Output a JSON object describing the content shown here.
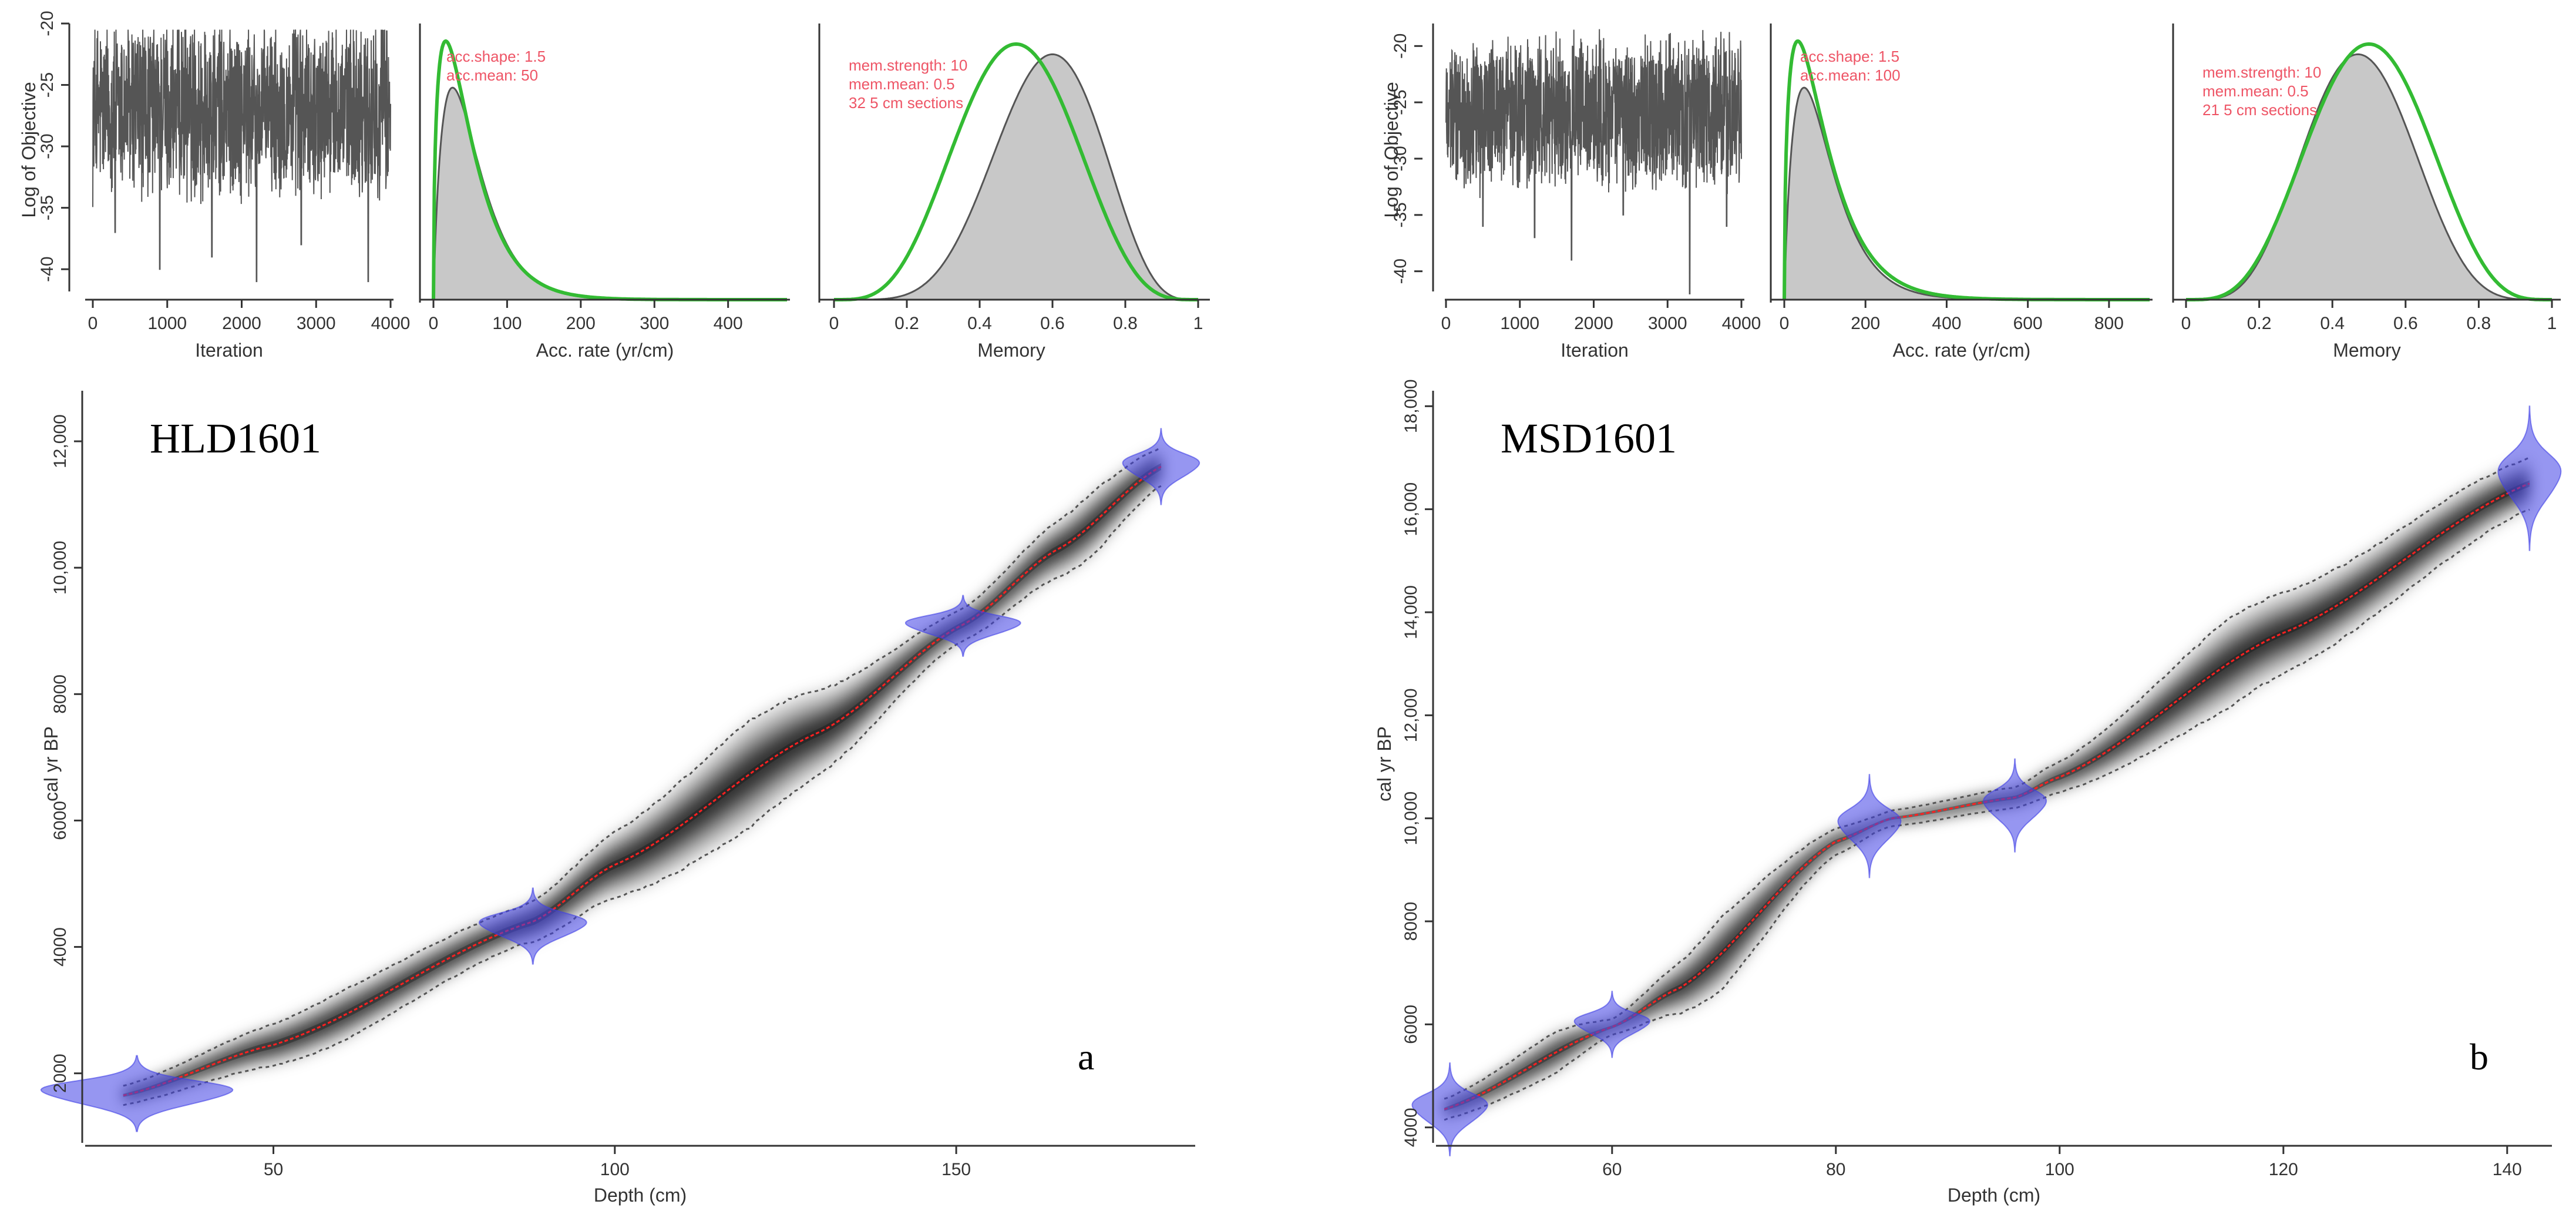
{
  "colors": {
    "trace": "#555555",
    "posterior": "#c8c8c8",
    "prior": "#33bb33",
    "red": "#ff2020",
    "blue": "#4040e6",
    "bound": "#555555",
    "annot": "#ee5566"
  },
  "chart_data": [
    {
      "id": "a",
      "type": "line",
      "core_label": "HLD1601",
      "panel_letter": "a",
      "iter": {
        "ylabel": "Log of Objective",
        "xlabel": "Iteration",
        "xlim": [
          0,
          4000
        ],
        "ylim": [
          -42,
          -20
        ],
        "xticks": [
          0,
          1000,
          2000,
          3000,
          4000
        ],
        "yticks": [
          -40,
          -35,
          -30,
          -25,
          -20
        ],
        "mean": -27,
        "spread": 2.8,
        "dips": [
          [
            300,
            -37
          ],
          [
            900,
            -40
          ],
          [
            1600,
            -39
          ],
          [
            2200,
            -41
          ],
          [
            2800,
            -38
          ],
          [
            3700,
            -41
          ]
        ]
      },
      "acc": {
        "xlabel": "Acc. rate (yr/cm)",
        "xlim": [
          0,
          480
        ],
        "xticks": [
          0,
          100,
          200,
          300,
          400
        ],
        "prior_shape": 1.5,
        "prior_mean": 50,
        "post_mode": 22,
        "post_scale": 0.82,
        "post_tail": 1.18,
        "annotation": [
          "acc.shape:  1.5",
          "acc.mean:  50"
        ]
      },
      "mem": {
        "xlabel": "Memory",
        "xlim": [
          0,
          1
        ],
        "xticks": [
          0,
          0.2,
          0.4,
          0.6,
          0.8,
          1.0
        ],
        "prior_mean": 0.5,
        "prior_strength": 10,
        "post_mode": 0.6,
        "annotation": [
          "mem.strength:  10",
          "mem.mean:  0.5",
          "32  5  cm  sections"
        ]
      },
      "agedepth": {
        "xlabel": "Depth (cm)",
        "ylabel": "cal yr BP",
        "xlim": [
          22,
          185
        ],
        "ylim": [
          900,
          12800
        ],
        "xticks": [
          50,
          100,
          150
        ],
        "yticks": [
          2000,
          4000,
          6000,
          8000,
          10000,
          12000
        ],
        "ytick_labels": [
          "2000",
          "4000",
          "6000",
          "8000",
          "10,000",
          "12,000"
        ],
        "median": [
          [
            28,
            1650
          ],
          [
            50,
            2450
          ],
          [
            88,
            4400
          ],
          [
            100,
            5300
          ],
          [
            130,
            7400
          ],
          [
            151,
            9100
          ],
          [
            165,
            10300
          ],
          [
            180,
            11600
          ]
        ],
        "width": [
          [
            28,
            150
          ],
          [
            60,
            400
          ],
          [
            86,
            300
          ],
          [
            120,
            850
          ],
          [
            150,
            250
          ],
          [
            170,
            500
          ],
          [
            180,
            300
          ]
        ],
        "dates": [
          [
            30,
            1680,
            300,
            25
          ],
          [
            88,
            4330,
            300,
            14
          ],
          [
            151,
            9080,
            240,
            15
          ],
          [
            180,
            11600,
            300,
            10
          ]
        ]
      }
    },
    {
      "id": "b",
      "type": "line",
      "core_label": "MSD1601",
      "panel_letter": "b",
      "iter": {
        "ylabel": "Log of Objective",
        "xlabel": "Iteration",
        "xlim": [
          0,
          4000
        ],
        "ylim": [
          -42,
          -18
        ],
        "xticks": [
          0,
          1000,
          2000,
          3000,
          4000
        ],
        "yticks": [
          -40,
          -35,
          -30,
          -25,
          -20
        ],
        "mean": -26,
        "spread": 2.6,
        "dips": [
          [
            500,
            -36
          ],
          [
            1200,
            -37
          ],
          [
            1700,
            -39
          ],
          [
            2400,
            -35
          ],
          [
            3300,
            -42
          ],
          [
            3800,
            -36
          ]
        ]
      },
      "acc": {
        "xlabel": "Acc. rate (yr/cm)",
        "xlim": [
          0,
          900
        ],
        "xticks": [
          0,
          200,
          400,
          600,
          800
        ],
        "prior_shape": 1.5,
        "prior_mean": 100,
        "post_mode": 40,
        "post_scale": 0.82,
        "post_tail": 1.22,
        "annotation": [
          "acc.shape:  1.5",
          "acc.mean:  100"
        ]
      },
      "mem": {
        "xlabel": "Memory",
        "xlim": [
          0,
          1
        ],
        "xticks": [
          0,
          0.2,
          0.4,
          0.6,
          0.8,
          1.0
        ],
        "prior_mean": 0.5,
        "prior_strength": 10,
        "post_mode": 0.47,
        "annotation": [
          "mem.strength:  10",
          "mem.mean:  0.5",
          "21  5  cm  sections"
        ]
      },
      "agedepth": {
        "xlabel": "Depth (cm)",
        "ylabel": "cal yr BP",
        "xlim": [
          44,
          144
        ],
        "ylim": [
          3700,
          18300
        ],
        "xticks": [
          60,
          80,
          100,
          120,
          140
        ],
        "yticks": [
          4000,
          6000,
          8000,
          10000,
          12000,
          14000,
          16000,
          18000
        ],
        "ytick_labels": [
          "4000",
          "6000",
          "8000",
          "10,000",
          "12,000",
          "14,000",
          "16,000",
          "18,000"
        ],
        "median": [
          [
            45,
            4350
          ],
          [
            60,
            5950
          ],
          [
            66,
            6700
          ],
          [
            80,
            9550
          ],
          [
            85,
            10000
          ],
          [
            96,
            10400
          ],
          [
            100,
            10800
          ],
          [
            120,
            13600
          ],
          [
            142,
            16500
          ]
        ],
        "width": [
          [
            45,
            200
          ],
          [
            55,
            400
          ],
          [
            60,
            150
          ],
          [
            70,
            700
          ],
          [
            80,
            250
          ],
          [
            84,
            150
          ],
          [
            96,
            200
          ],
          [
            100,
            300
          ],
          [
            115,
            850
          ],
          [
            130,
            650
          ],
          [
            142,
            500
          ]
        ],
        "dates": [
          [
            45.5,
            4350,
            450,
            6
          ],
          [
            60,
            6000,
            320,
            6
          ],
          [
            83,
            9850,
            500,
            5
          ],
          [
            96,
            10250,
            450,
            5
          ],
          [
            142,
            16600,
            700,
            5
          ]
        ]
      }
    }
  ]
}
